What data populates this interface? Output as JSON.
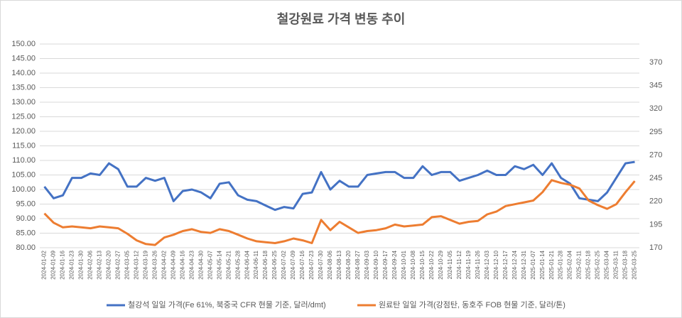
{
  "chart_data": {
    "type": "line",
    "title": "철강원료 가격 변동 추이",
    "categories": [
      "2024-01-02",
      "2024-01-09",
      "2024-01-16",
      "2024-01-23",
      "2024-01-30",
      "2024-02-06",
      "2024-02-13",
      "2024-02-20",
      "2024-02-27",
      "2024-03-05",
      "2024-03-12",
      "2024-03-19",
      "2024-03-26",
      "2024-04-02",
      "2024-04-09",
      "2024-04-16",
      "2024-04-23",
      "2024-04-30",
      "2024-05-07",
      "2024-05-14",
      "2024-05-21",
      "2024-05-28",
      "2024-06-04",
      "2024-06-11",
      "2024-06-18",
      "2024-06-25",
      "2024-07-02",
      "2024-07-09",
      "2024-07-16",
      "2024-07-23",
      "2024-07-30",
      "2024-08-06",
      "2024-08-13",
      "2024-08-20",
      "2024-08-27",
      "2024-09-03",
      "2024-09-10",
      "2024-09-17",
      "2024-09-24",
      "2024-10-01",
      "2024-10-08",
      "2024-10-15",
      "2024-10-22",
      "2024-10-29",
      "2024-11-05",
      "2024-11-12",
      "2024-11-19",
      "2024-11-26",
      "2024-12-03",
      "2024-12-10",
      "2024-12-17",
      "2024-12-24",
      "2024-12-31",
      "2025-01-07",
      "2025-01-14",
      "2025-01-21",
      "2025-01-28",
      "2025-02-04",
      "2025-02-11",
      "2025-02-18",
      "2025-02-25",
      "2025-03-04",
      "2025-03-11",
      "2025-03-18",
      "2025-03-25"
    ],
    "series": [
      {
        "name": "철강석 일일 가격(Fe 61%, 북중국 CFR 현물 기준, 달러/dmt)",
        "color": "#4472c4",
        "axis": "y",
        "values": [
          101,
          97,
          98,
          104,
          104,
          105.5,
          105,
          109,
          107,
          101,
          101,
          104,
          103,
          104,
          96,
          99.5,
          100,
          99,
          97,
          102,
          102.5,
          98,
          96.5,
          96,
          94.5,
          93,
          94,
          93.5,
          98.5,
          99,
          106,
          100,
          103,
          101,
          101,
          105,
          105.5,
          106,
          106,
          104,
          104,
          108,
          105,
          106,
          106,
          103,
          104,
          105,
          106.5,
          105,
          105,
          108,
          107,
          108.5,
          105,
          109,
          104,
          102,
          97,
          96.5,
          96,
          99,
          104,
          109,
          109.5
        ]
      },
      {
        "name": "원료탄 일일 가격(강점탄, 동호주 FOB 현물 기준, 달러/톤)",
        "color": "#ed7d31",
        "axis": "y2",
        "values": [
          207,
          197,
          192,
          193,
          192,
          191,
          193,
          192,
          191,
          185,
          178,
          174,
          173,
          181,
          184,
          188,
          190,
          187,
          186,
          190,
          188,
          184,
          180,
          177,
          176,
          175,
          177,
          180,
          178,
          175,
          200,
          189,
          198,
          192,
          186,
          188,
          189,
          191,
          195,
          193,
          194,
          195,
          203,
          204,
          200,
          196,
          198,
          199,
          206,
          209,
          215,
          217,
          219,
          221,
          230,
          243,
          240,
          238,
          234,
          221,
          216,
          212,
          217,
          230,
          242
        ]
      }
    ],
    "ylim": [
      80,
      150
    ],
    "yticks": [
      {
        "value": 80,
        "label": "80.00"
      },
      {
        "value": 85,
        "label": "85.00"
      },
      {
        "value": 90,
        "label": "90.00"
      },
      {
        "value": 95,
        "label": "95.00"
      },
      {
        "value": 100,
        "label": "100.00"
      },
      {
        "value": 105,
        "label": "105.00"
      },
      {
        "value": 110,
        "label": "110.00"
      },
      {
        "value": 115,
        "label": "115.00"
      },
      {
        "value": 120,
        "label": "120.00"
      },
      {
        "value": 125,
        "label": "125.00"
      },
      {
        "value": 130,
        "label": "130.00"
      },
      {
        "value": 135,
        "label": "135.00"
      },
      {
        "value": 140,
        "label": "140.00"
      },
      {
        "value": 145,
        "label": "145.00"
      },
      {
        "value": 150,
        "label": "150.00"
      }
    ],
    "y2lim": [
      170,
      390
    ],
    "y2ticks": [
      170,
      195,
      220,
      245,
      270,
      295,
      320,
      345,
      370
    ],
    "grid": true,
    "legend": "bottom"
  }
}
